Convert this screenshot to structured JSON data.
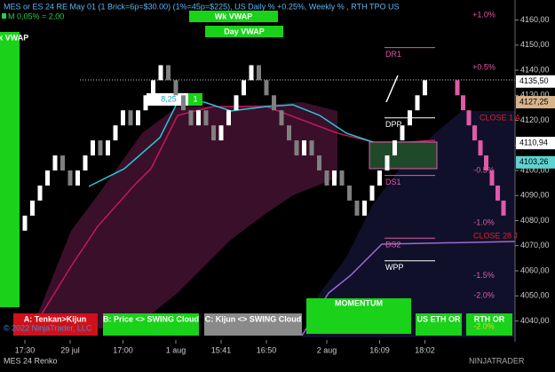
{
  "chart_data": {
    "type": "renko",
    "title": "MES or ES 24 RE May 01  (1 Brick=6p=$30.00) (1%=45p=$225), US Daily % +0.25%, Weekly % , RTH TPO US",
    "subtitle": "M 0,05% = 2,00",
    "brick_size": 6,
    "series": [
      {
        "start": 4076,
        "up_color": "#ffffff",
        "down_color": "#808080",
        "values": [
          4082,
          4088,
          4094,
          4100,
          4106,
          4100,
          4094,
          4100,
          4106,
          4112,
          4106,
          4112,
          4118,
          4124,
          4118,
          4124,
          4130,
          4136,
          4142,
          4136,
          4130,
          4124,
          4118,
          4124,
          4118,
          4112,
          4118,
          4124,
          4130,
          4136,
          4142,
          4136,
          4130,
          4124,
          4118,
          4112,
          4106,
          4112,
          4106,
          4100,
          4094,
          4100,
          4094,
          4088,
          4082,
          4088,
          4094,
          4100,
          4106,
          4112,
          4118,
          4124,
          4130,
          4136
        ]
      },
      {
        "start": 4136,
        "up_color": "#e05aa8",
        "down_color": "#e05aa8",
        "values": [
          4130,
          4124,
          4118,
          4112,
          4106,
          4100,
          4094,
          4088,
          4082
        ]
      }
    ],
    "ylim": [
      4026,
      4168
    ],
    "yticks": [
      {
        "value": 4040,
        "label": "4040,00"
      },
      {
        "value": 4050,
        "label": "4050,00"
      },
      {
        "value": 4060,
        "label": "4060,00"
      },
      {
        "value": 4070,
        "label": "4070,00"
      },
      {
        "value": 4080,
        "label": "4080,00"
      },
      {
        "value": 4090,
        "label": "4090,00"
      },
      {
        "value": 4100,
        "label": "4100,00"
      },
      {
        "value": 4110,
        "label": "4110,00"
      },
      {
        "value": 4120,
        "label": "4120,00"
      },
      {
        "value": 4130,
        "label": "4130,00"
      },
      {
        "value": 4140,
        "label": "4140,00"
      },
      {
        "value": 4150,
        "label": "4150,00"
      },
      {
        "value": 4160,
        "label": "4160,00"
      }
    ],
    "xticks": [
      {
        "value": 0,
        "label": "17:30"
      },
      {
        "value": 6,
        "label": "29 jul"
      },
      {
        "value": 13,
        "label": "17:00"
      },
      {
        "value": 20,
        "label": "1 aug"
      },
      {
        "value": 26,
        "label": "15:41"
      },
      {
        "value": 32,
        "label": "16:50"
      },
      {
        "value": 40,
        "label": "2 aug"
      },
      {
        "value": 47,
        "label": "16:09"
      },
      {
        "value": 53,
        "label": "18:02"
      }
    ],
    "badges": [
      {
        "value": 4135.5,
        "label": "4135,50",
        "color": "#ffffff"
      },
      {
        "value": 4127.25,
        "label": "4127,25",
        "color": "#d9b48a"
      },
      {
        "value": 4110.94,
        "label": "4110,94",
        "color": "#ffffff"
      },
      {
        "value": 4103.26,
        "label": "4103,26",
        "color": "#5fd3d3"
      }
    ],
    "levels": [
      {
        "label": "DR1",
        "value": 4149,
        "color": "#e05aa8"
      },
      {
        "label": "DPP",
        "value": 4121,
        "color": "#ffffff"
      },
      {
        "label": "DS1",
        "value": 4098,
        "color": "#e05aa8"
      },
      {
        "label": "DS2",
        "value": 4073,
        "color": "#e05aa8"
      },
      {
        "label": "WPP",
        "value": 4064,
        "color": "#ffffff"
      }
    ],
    "percent_levels": [
      {
        "text": "+1.0%",
        "price": 4162
      },
      {
        "text": "+0.5%",
        "price": 4141
      },
      {
        "text": "-0.5%",
        "price": 4100
      },
      {
        "text": "-1.0%",
        "price": 4079
      },
      {
        "text": "-1.5%",
        "price": 4058
      },
      {
        "text": "-2.0%",
        "price": 4050
      }
    ],
    "notes": [
      "CLOSE 1 A",
      "CLOSE 28 J",
      "8,25",
      "1",
      "-2.0%"
    ],
    "buttons": [
      "Wk VWAP",
      "Day VWAP",
      "Wk VWAP",
      "A: Tenkan>Kijun",
      "B: Price <> SWING Cloud",
      "C: Kijun <> SWING Cloud",
      "MOMENTUM",
      "US ETH OR",
      "RTH OR"
    ],
    "footer": [
      "© 2022 NinjaTrader, LLC",
      "MES 24 Renko",
      "NINJATRADER"
    ]
  }
}
